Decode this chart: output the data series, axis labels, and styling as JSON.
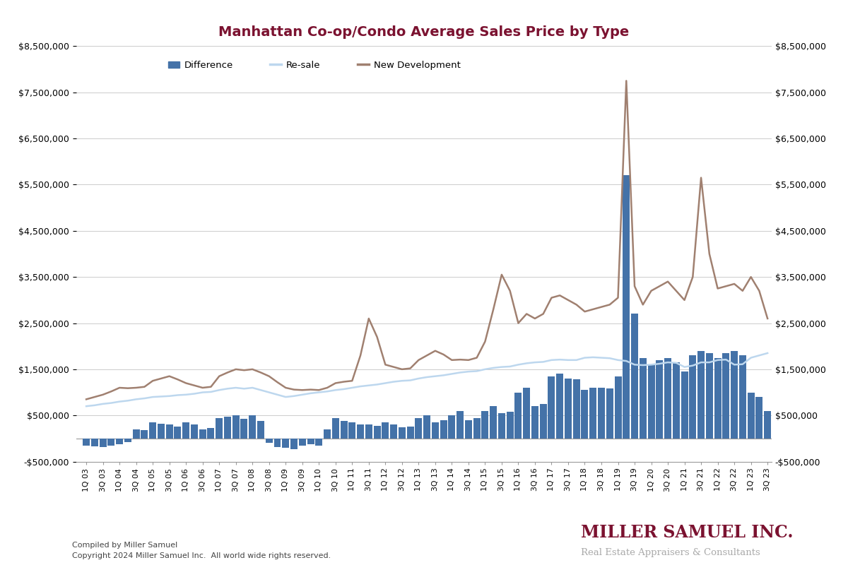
{
  "title": "Manhattan Co-op/Condo Average Sales Price by Type",
  "title_color": "#7B1230",
  "background_color": "#FFFFFF",
  "plot_bg_color": "#FFFFFF",
  "grid_color": "#CCCCCC",
  "ylim": [
    -500000,
    8500000
  ],
  "yticks": [
    -500000,
    500000,
    1500000,
    2500000,
    3500000,
    4500000,
    5500000,
    6500000,
    7500000,
    8500000
  ],
  "bar_color": "#4472A8",
  "resale_color": "#BDD7EE",
  "newdev_color": "#A08070",
  "labels": [
    "1Q 03",
    "3Q 03",
    "1Q 04",
    "3Q 04",
    "1Q 05",
    "3Q 05",
    "1Q 06",
    "3Q 06",
    "1Q 07",
    "3Q 07",
    "1Q 08",
    "3Q 08",
    "1Q 09",
    "3Q 09",
    "1Q 10",
    "3Q 10",
    "1Q 11",
    "3Q 11",
    "1Q 12",
    "3Q 12",
    "1Q 13",
    "3Q 13",
    "1Q 14",
    "3Q 14",
    "1Q 15",
    "3Q 15",
    "1Q 16",
    "3Q 16",
    "1Q 17",
    "3Q 17",
    "1Q 18",
    "3Q 18",
    "1Q 19",
    "3Q 19",
    "1Q 20",
    "3Q 20",
    "1Q 21",
    "3Q 21",
    "1Q 22",
    "3Q 22",
    "1Q 23",
    "3Q 23"
  ],
  "difference_quarterly": [
    -150000,
    -170000,
    -180000,
    -160000,
    -130000,
    -80000,
    200000,
    180000,
    350000,
    320000,
    300000,
    260000,
    350000,
    300000,
    200000,
    230000,
    450000,
    480000,
    500000,
    420000,
    500000,
    380000,
    -100000,
    -180000,
    -200000,
    -230000,
    -150000,
    -120000,
    -150000,
    200000,
    450000,
    380000,
    350000,
    300000,
    300000,
    270000,
    350000,
    300000,
    250000,
    260000,
    450000,
    500000,
    350000,
    400000,
    500000,
    600000,
    400000,
    450000,
    600000,
    700000,
    550000,
    580000,
    1000000,
    1100000,
    700000,
    750000,
    1350000,
    1400000,
    1300000,
    1280000,
    1050000,
    1100000,
    1100000,
    1080000,
    1350000,
    5700000,
    2700000,
    1750000,
    1600000,
    1700000,
    1750000,
    1650000,
    1450000,
    1800000,
    1900000,
    1850000,
    1750000,
    1850000,
    1900000,
    1800000,
    1000000,
    900000,
    600000
  ],
  "resale_quarterly": [
    700000,
    720000,
    750000,
    770000,
    800000,
    820000,
    850000,
    870000,
    900000,
    910000,
    920000,
    940000,
    950000,
    970000,
    1000000,
    1010000,
    1050000,
    1080000,
    1100000,
    1080000,
    1100000,
    1050000,
    1000000,
    950000,
    900000,
    920000,
    950000,
    980000,
    1000000,
    1020000,
    1050000,
    1070000,
    1100000,
    1130000,
    1150000,
    1170000,
    1200000,
    1230000,
    1250000,
    1260000,
    1300000,
    1330000,
    1350000,
    1370000,
    1400000,
    1430000,
    1450000,
    1460000,
    1500000,
    1530000,
    1550000,
    1560000,
    1600000,
    1630000,
    1650000,
    1660000,
    1700000,
    1710000,
    1700000,
    1700000,
    1750000,
    1760000,
    1750000,
    1740000,
    1700000,
    1680000,
    1600000,
    1590000,
    1600000,
    1620000,
    1650000,
    1640000,
    1550000,
    1580000,
    1650000,
    1650000,
    1700000,
    1710000,
    1600000,
    1610000,
    1750000,
    1800000,
    1850000
  ],
  "newdev_quarterly": [
    850000,
    900000,
    950000,
    1020000,
    1100000,
    1090000,
    1100000,
    1120000,
    1250000,
    1300000,
    1350000,
    1280000,
    1200000,
    1150000,
    1100000,
    1120000,
    1350000,
    1430000,
    1500000,
    1480000,
    1500000,
    1430000,
    1350000,
    1220000,
    1100000,
    1060000,
    1050000,
    1060000,
    1050000,
    1100000,
    1200000,
    1230000,
    1250000,
    1800000,
    2600000,
    2200000,
    1600000,
    1550000,
    1500000,
    1520000,
    1700000,
    1800000,
    1900000,
    1820000,
    1700000,
    1710000,
    1700000,
    1750000,
    2100000,
    2800000,
    3550000,
    3200000,
    2500000,
    2700000,
    2600000,
    2700000,
    3050000,
    3100000,
    3000000,
    2900000,
    2750000,
    2800000,
    2850000,
    2900000,
    3050000,
    7750000,
    3300000,
    2900000,
    3200000,
    3300000,
    3400000,
    3200000,
    3000000,
    3500000,
    5650000,
    4000000,
    3250000,
    3300000,
    3350000,
    3200000,
    3500000,
    3200000,
    2600000
  ],
  "footer_left1": "Compiled by Miller Samuel",
  "footer_left2": "Copyright 2024 Miller Samuel Inc.  All world wide rights reserved.",
  "footer_right1": "MILLER SAMUEL INC.",
  "footer_right2": "Real Estate Appraisers & Consultants"
}
